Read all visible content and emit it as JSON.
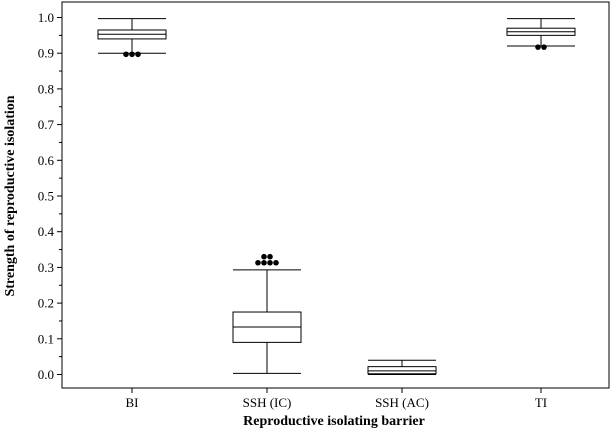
{
  "chart_data": {
    "type": "box",
    "title": "",
    "xlabel": "Reproductive isolating barrier",
    "ylabel": "Strength of reproductive isolation",
    "ylim": [
      -0.03,
      1.04
    ],
    "yticks": [
      "0.0",
      "0.1",
      "0.2",
      "0.3",
      "0.4",
      "0.5",
      "0.6",
      "0.7",
      "0.8",
      "0.9",
      "1.0"
    ],
    "ytick_values": [
      0.0,
      0.1,
      0.2,
      0.3,
      0.4,
      0.5,
      0.6,
      0.7,
      0.8,
      0.9,
      1.0
    ],
    "categories": [
      "BI",
      "SSH (IC)",
      "SSH (AC)",
      "TI"
    ],
    "boxes": [
      {
        "category": "BI",
        "min": 0.9,
        "q1": 0.94,
        "median": 0.953,
        "q3": 0.965,
        "max": 0.997,
        "outliers": [
          0.897,
          0.897,
          0.897
        ]
      },
      {
        "category": "SSH (IC)",
        "min": 0.003,
        "q1": 0.09,
        "median": 0.133,
        "q3": 0.175,
        "max": 0.293,
        "outliers": [
          0.313,
          0.313,
          0.313,
          0.313,
          0.33,
          0.33
        ]
      },
      {
        "category": "SSH (AC)",
        "min": 0.0,
        "q1": 0.002,
        "median": 0.01,
        "q3": 0.022,
        "max": 0.04,
        "outliers": []
      },
      {
        "category": "TI",
        "min": 0.92,
        "q1": 0.95,
        "median": 0.96,
        "q3": 0.97,
        "max": 0.997,
        "outliers": [
          0.917,
          0.917
        ]
      }
    ]
  }
}
